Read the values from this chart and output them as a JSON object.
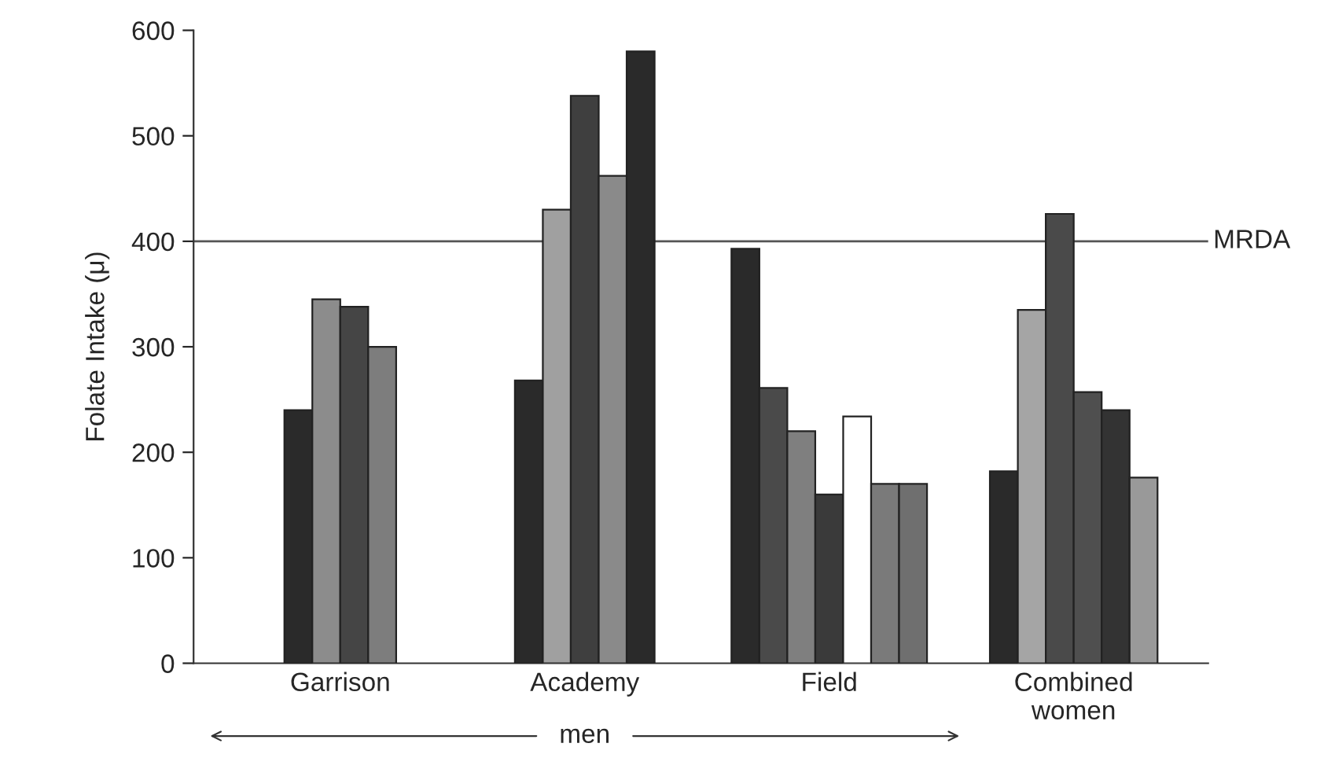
{
  "chart_data": {
    "type": "bar",
    "ylabel": "Folate Intake (μ)",
    "categories": [
      "Garrison",
      "Academy",
      "Field",
      "Combined\nwomen"
    ],
    "series": [
      {
        "values": [
          240,
          268,
          393,
          182
        ],
        "colors": [
          "#2a2a2a",
          "#2a2a2a",
          "#2a2a2a",
          "#2a2a2a"
        ]
      },
      {
        "values": [
          345,
          430,
          261,
          335
        ],
        "colors": [
          "#8c8c8c",
          "#a0a0a0",
          "#4a4a4a",
          "#a5a5a5"
        ]
      },
      {
        "values": [
          338,
          538,
          220,
          426
        ],
        "colors": [
          "#454545",
          "#3f3f3f",
          "#7f7f7f",
          "#4a4a4a"
        ]
      },
      {
        "values": [
          300,
          462,
          160,
          257
        ],
        "colors": [
          "#7d7d7d",
          "#8a8a8a",
          "#3a3a3a",
          "#4f4f4f"
        ]
      },
      {
        "values": [
          null,
          580,
          234,
          240
        ],
        "colors": [
          null,
          "#2a2a2a",
          "#ffffff",
          "#333333"
        ]
      },
      {
        "values": [
          null,
          null,
          170,
          176
        ],
        "colors": [
          null,
          null,
          "#7a7a7a",
          "#999999"
        ]
      },
      {
        "values": [
          null,
          null,
          170,
          null
        ],
        "colors": [
          null,
          null,
          "#6f6f6f",
          null
        ]
      }
    ],
    "ylim": [
      0,
      600
    ],
    "yticks": [
      0,
      100,
      200,
      300,
      400,
      500,
      600
    ],
    "ref_lines": [
      {
        "axis": "y",
        "value": 400,
        "label": "MRDA",
        "color": "#555555"
      }
    ],
    "annotations": [
      "men"
    ],
    "grid": false,
    "legend": false
  }
}
